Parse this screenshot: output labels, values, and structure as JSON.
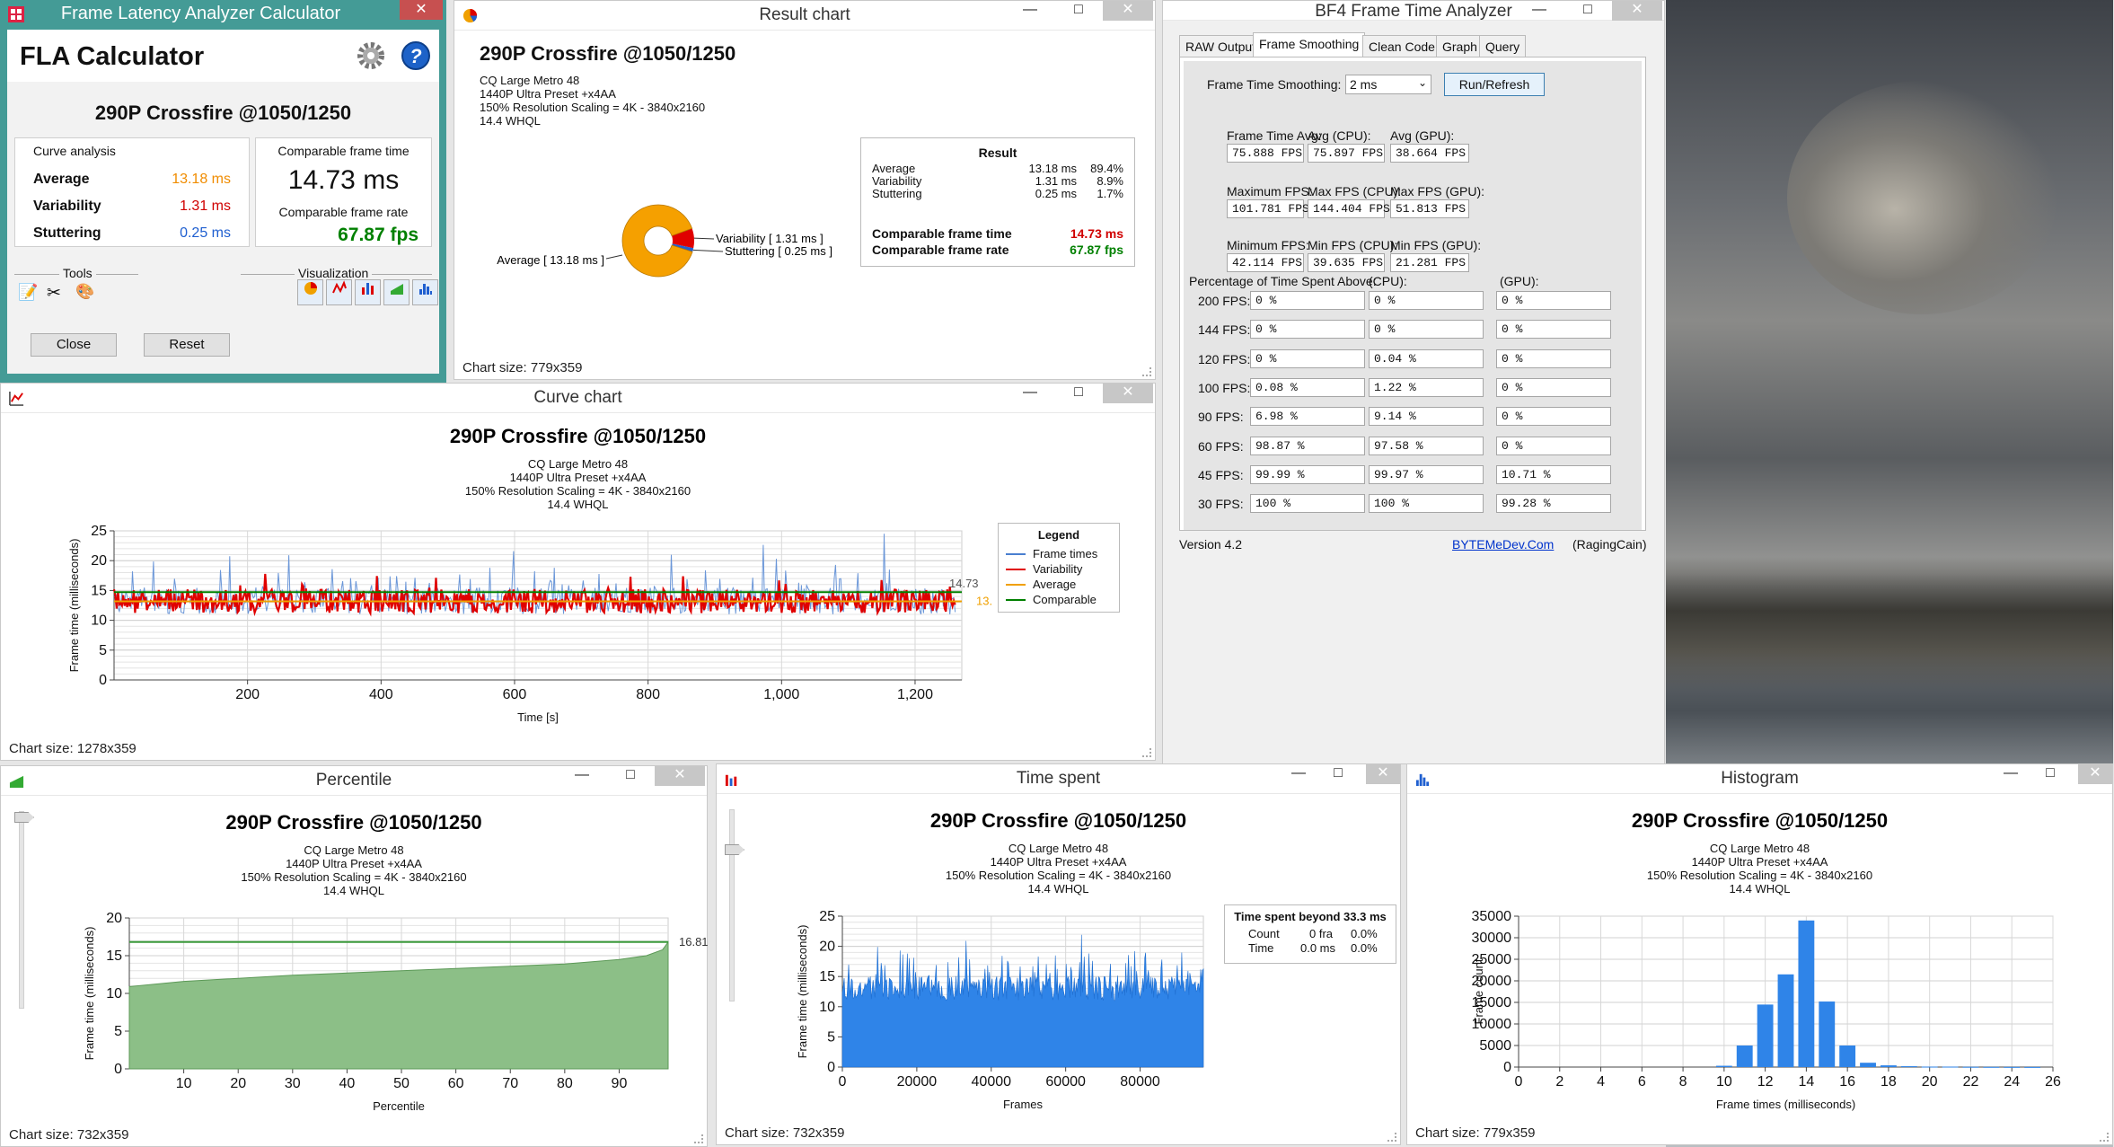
{
  "subtitle_lines": [
    "CQ Large Metro 48",
    "1440P Ultra Preset +x4AA",
    "150% Resolution Scaling = 4K - 3840x2160",
    "14.4 WHQL"
  ],
  "chart_title": "290P Crossfire @1050/1250",
  "window_controls": {
    "minimize": "—",
    "maximize": "□",
    "close": "✕"
  },
  "fla": {
    "window_title": "Frame Latency Analyzer Calculator",
    "app_title": "FLA Calculator",
    "chart_name": "290P Crossfire @1050/1250",
    "curve_analysis_label": "Curve analysis",
    "comparable_label": "Comparable frame time",
    "average_label": "Average",
    "average_value": "13.18 ms",
    "variability_label": "Variability",
    "variability_value": "1.31 ms",
    "stuttering_label": "Stuttering",
    "stuttering_value": "0.25 ms",
    "comparable_time": "14.73 ms",
    "comparable_rate_label": "Comparable frame rate",
    "comparable_rate": "67.87 fps",
    "tools_label": "Tools",
    "visualization_label": "Visualization",
    "close_label": "Close",
    "reset_label": "Reset",
    "colors": {
      "average": "#f08c00",
      "variability": "#d00000",
      "stuttering": "#1f5fd0",
      "rate": "#008000"
    }
  },
  "result_chart": {
    "window_title": "Result chart",
    "status": "Chart size:  779x359",
    "labels": {
      "variability": "Variability [ 1.31 ms ]",
      "stuttering": "Stuttering [ 0.25 ms ]",
      "average": "Average [ 13.18 ms ]"
    },
    "result_box": {
      "title": "Result",
      "rows": [
        {
          "name": "Average",
          "ms": "13.18 ms",
          "pct": "89.4%"
        },
        {
          "name": "Variability",
          "ms": "1.31 ms",
          "pct": "8.9%"
        },
        {
          "name": "Stuttering",
          "ms": "0.25 ms",
          "pct": "1.7%"
        }
      ],
      "comp_time_label": "Comparable frame time",
      "comp_time": "14.73 ms",
      "comp_rate_label": "Comparable frame rate",
      "comp_rate": "67.87 fps"
    },
    "chart_data": {
      "type": "pie",
      "categories": [
        "Average",
        "Variability",
        "Stuttering"
      ],
      "values": [
        89.4,
        8.9,
        1.7
      ],
      "colors": [
        "#f5a000",
        "#e00000",
        "#2060d0"
      ]
    }
  },
  "curve_chart": {
    "window_title": "Curve chart",
    "status": "Chart size:  1278x359",
    "ylabel": "Frame time (milliseconds)",
    "xlabel": "Time [s]",
    "legend": {
      "title": "Legend",
      "items": [
        {
          "name": "Frame times",
          "color": "#4a7fd0"
        },
        {
          "name": "Variability",
          "color": "#e00000"
        },
        {
          "name": "Average",
          "color": "#f0a000"
        },
        {
          "name": "Comparable",
          "color": "#008000"
        }
      ]
    },
    "label_comparable": "14.73",
    "label_average": "13.",
    "chart_data": {
      "type": "line",
      "xlim": [
        0,
        1270
      ],
      "ylim": [
        0,
        25
      ],
      "xticks": [
        200,
        400,
        600,
        800,
        1000,
        1200
      ],
      "xtick_labels": [
        "200",
        "400",
        "600",
        "800",
        "1,000",
        "1,200"
      ],
      "yticks": [
        0,
        5,
        10,
        15,
        20,
        25
      ],
      "average": 13.18,
      "comparable": 14.73
    }
  },
  "bf4": {
    "window_title": "BF4 Frame Time Analyzer",
    "tabs": [
      "RAW Output",
      "Frame Smoothing",
      "Clean Code",
      "Graph",
      "Query"
    ],
    "active_tab": 1,
    "smoothing_label": "Frame Time Smoothing:",
    "smoothing_value": "2 ms",
    "run_label": "Run/Refresh",
    "stats": [
      {
        "l": "Frame Time Avg:",
        "v": "75.888 FPS"
      },
      {
        "l": "Avg (CPU):",
        "v": "75.897 FPS"
      },
      {
        "l": "Avg (GPU):",
        "v": "38.664 FPS"
      },
      {
        "l": "Maximum FPS:",
        "v": "101.781 FPS"
      },
      {
        "l": "Max FPS (CPU):",
        "v": "144.404 FPS"
      },
      {
        "l": "Max FPS (GPU):",
        "v": "51.813 FPS"
      },
      {
        "l": "Minimum FPS:",
        "v": "42.114 FPS"
      },
      {
        "l": "Min FPS (CPU):",
        "v": "39.635 FPS"
      },
      {
        "l": "Min FPS (GPU):",
        "v": "21.281 FPS"
      }
    ],
    "pct_label": "Percentage of Time Spent Above:",
    "cpu_label": "(CPU):",
    "gpu_label": "(GPU):",
    "pct_rows": [
      {
        "fps": "200 FPS:",
        "a": "0 %",
        "c": "0 %",
        "g": "0 %"
      },
      {
        "fps": "144 FPS:",
        "a": "0 %",
        "c": "0 %",
        "g": "0 %"
      },
      {
        "fps": "120 FPS:",
        "a": "0 %",
        "c": "0.04 %",
        "g": "0 %"
      },
      {
        "fps": "100 FPS:",
        "a": "0.08 %",
        "c": "1.22 %",
        "g": "0 %"
      },
      {
        "fps": "90 FPS:",
        "a": "6.98 %",
        "c": "9.14 %",
        "g": "0 %"
      },
      {
        "fps": "60 FPS:",
        "a": "98.87 %",
        "c": "97.58 %",
        "g": "0 %"
      },
      {
        "fps": "45 FPS:",
        "a": "99.99 %",
        "c": "99.97 %",
        "g": "10.71 %"
      },
      {
        "fps": "30 FPS:",
        "a": "100 %",
        "c": "100 %",
        "g": "99.28 %"
      }
    ],
    "version": "Version 4.2",
    "link": "BYTEMeDev.Com",
    "author": "(RagingCain)"
  },
  "percentile": {
    "window_title": "Percentile",
    "status": "Chart size:  732x359",
    "ylabel": "Frame time (milliseconds)",
    "xlabel": "Percentile",
    "end_label": "16.81",
    "chart_data": {
      "type": "area",
      "x": [
        0,
        10,
        20,
        30,
        40,
        50,
        60,
        70,
        80,
        90,
        95,
        98,
        99
      ],
      "y": [
        10.9,
        11.6,
        12.0,
        12.4,
        12.7,
        13.0,
        13.3,
        13.6,
        13.9,
        14.5,
        15.0,
        15.8,
        16.81
      ],
      "xlim": [
        0,
        99
      ],
      "ylim": [
        0,
        20
      ],
      "xticks": [
        10,
        20,
        30,
        40,
        50,
        60,
        70,
        80,
        90
      ],
      "yticks": [
        0,
        5,
        10,
        15,
        20
      ],
      "comparable": 16.81
    }
  },
  "time_spent": {
    "window_title": "Time spent",
    "status": "Chart size:  732x359",
    "ylabel": "Frame time (milliseconds)",
    "xlabel": "Frames",
    "beyond": {
      "title": "Time spent beyond 33.3 ms",
      "count_label": "Count",
      "count_value": "0 fra",
      "count_pct": "0.0%",
      "time_label": "Time",
      "time_value": "0.0 ms",
      "time_pct": "0.0%"
    },
    "chart_data": {
      "type": "bar",
      "xlim": [
        0,
        97000
      ],
      "ylim": [
        0,
        25
      ],
      "xticks": [
        0,
        20000,
        40000,
        60000,
        80000
      ],
      "yticks": [
        0,
        5,
        10,
        15,
        20,
        25
      ]
    }
  },
  "histogram": {
    "window_title": "Histogram",
    "status": "Chart size:  779x359",
    "ylabel": "Frame count",
    "xlabel": "Frame times (milliseconds)",
    "chart_data": {
      "type": "bar",
      "x": [
        9,
        10,
        11,
        12,
        13,
        14,
        15,
        16,
        17,
        18,
        19,
        20,
        21,
        22,
        23,
        24,
        25
      ],
      "values": [
        0,
        300,
        5000,
        14500,
        21500,
        34000,
        15200,
        5000,
        1000,
        400,
        200,
        100,
        100,
        60,
        40,
        30,
        20
      ],
      "xlim": [
        0,
        26
      ],
      "ylim": [
        0,
        35000
      ],
      "xticks": [
        0,
        2,
        4,
        6,
        8,
        10,
        12,
        14,
        16,
        18,
        20,
        22,
        24,
        26
      ],
      "yticks": [
        0,
        5000,
        10000,
        15000,
        20000,
        25000,
        30000,
        35000
      ]
    }
  }
}
